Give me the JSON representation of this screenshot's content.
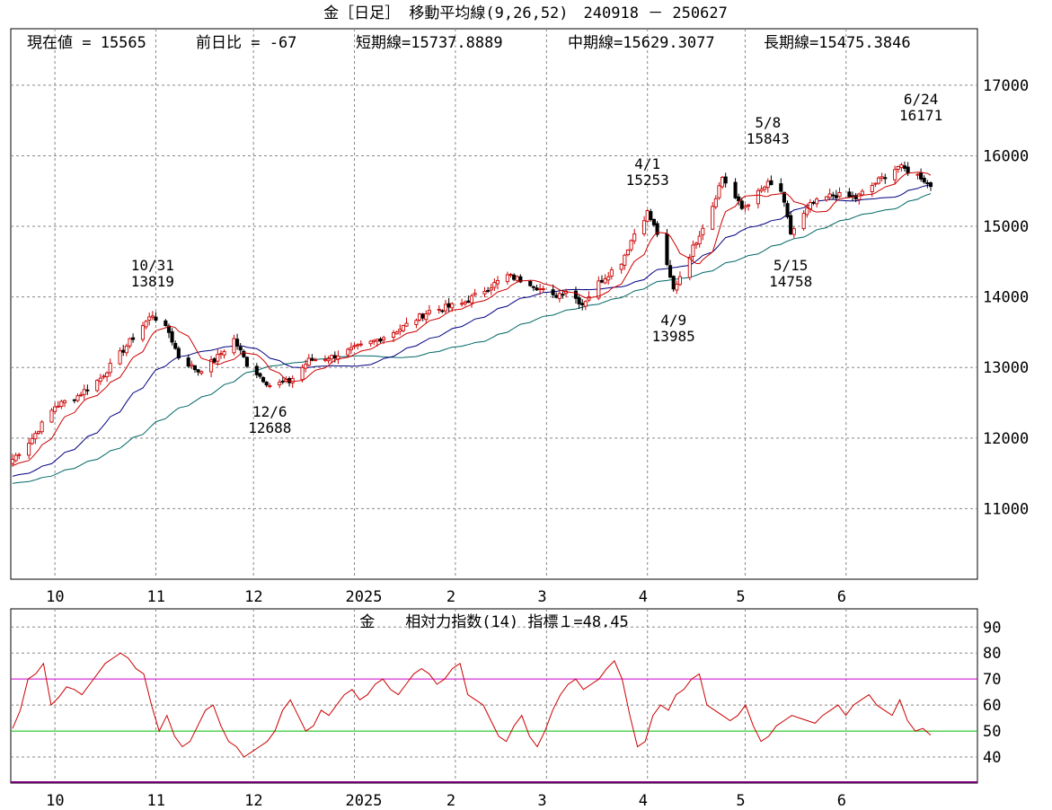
{
  "title": "金［日足］ 移動平均線(9,26,52)　240918 － 250627",
  "info": {
    "current": "現在値 = 15565",
    "change": "前日比 = -67",
    "short": "短期線=15737.8889",
    "mid": "中期線=15629.3077",
    "long": "長期線=15475.3846"
  },
  "rsi_title": "金　　相対力指数(14) 指標１=48.45",
  "colors": {
    "up_candle": "#cc0000",
    "down_candle": "#000000",
    "short_ma": "#cc0000",
    "mid_ma": "#000080",
    "long_ma": "#006666",
    "rsi_line": "#cc0000",
    "rsi_70_line": "#cc00cc",
    "rsi_50_line": "#00bb00"
  },
  "chart_data": [
    {
      "type": "candlestick",
      "title": "金［日足］ 移動平均線(9,26,52)　240918 － 250627",
      "x_labels": [
        "10",
        "11",
        "12",
        "2025",
        "2",
        "3",
        "4",
        "5",
        "6"
      ],
      "x_label_dates": [
        "2024-10-01",
        "2024-11-01",
        "2024-12-01",
        "2025-01-01",
        "2025-02-01",
        "2025-03-01",
        "2025-04-01",
        "2025-05-01",
        "2025-06-01"
      ],
      "date_range": [
        "2024-09-18",
        "2025-06-27"
      ],
      "y_ticks": [
        11000,
        12000,
        13000,
        14000,
        15000,
        16000,
        17000
      ],
      "ylim": [
        10000,
        17800
      ],
      "grid": true,
      "close_path": [
        [
          "2024-09-18",
          11700
        ],
        [
          "2024-09-24",
          12000
        ],
        [
          "2024-10-01",
          12450
        ],
        [
          "2024-10-08",
          12600
        ],
        [
          "2024-10-15",
          12850
        ],
        [
          "2024-10-22",
          13250
        ],
        [
          "2024-10-28",
          13600
        ],
        [
          "2024-10-31",
          13750
        ],
        [
          "2024-11-05",
          13500
        ],
        [
          "2024-11-08",
          13150
        ],
        [
          "2024-11-14",
          12950
        ],
        [
          "2024-11-19",
          13100
        ],
        [
          "2024-11-25",
          13400
        ],
        [
          "2024-11-29",
          13050
        ],
        [
          "2024-12-06",
          12750
        ],
        [
          "2024-12-12",
          12800
        ],
        [
          "2024-12-18",
          13100
        ],
        [
          "2024-12-25",
          13150
        ],
        [
          "2025-01-06",
          13350
        ],
        [
          "2025-01-15",
          13550
        ],
        [
          "2025-01-24",
          13800
        ],
        [
          "2025-02-03",
          13900
        ],
        [
          "2025-02-10",
          14100
        ],
        [
          "2025-02-17",
          14300
        ],
        [
          "2025-02-24",
          14200
        ],
        [
          "2025-03-03",
          14000
        ],
        [
          "2025-03-07",
          14100
        ],
        [
          "2025-03-12",
          13900
        ],
        [
          "2025-03-17",
          14200
        ],
        [
          "2025-03-24",
          14500
        ],
        [
          "2025-03-28",
          14900
        ],
        [
          "2025-04-01",
          15200
        ],
        [
          "2025-04-04",
          14900
        ],
        [
          "2025-04-09",
          14100
        ],
        [
          "2025-04-14",
          14600
        ],
        [
          "2025-04-21",
          15300
        ],
        [
          "2025-04-24",
          15700
        ],
        [
          "2025-04-30",
          15250
        ],
        [
          "2025-05-08",
          15600
        ],
        [
          "2025-05-12",
          15500
        ],
        [
          "2025-05-15",
          14900
        ],
        [
          "2025-05-21",
          15300
        ],
        [
          "2025-05-28",
          15450
        ],
        [
          "2025-06-04",
          15400
        ],
        [
          "2025-06-11",
          15650
        ],
        [
          "2025-06-17",
          15850
        ],
        [
          "2025-06-24",
          15700
        ],
        [
          "2025-06-27",
          15565
        ]
      ],
      "annotations": [
        {
          "date": "2024-10-31",
          "label": "10/31",
          "value": "13819",
          "position": "above"
        },
        {
          "date": "2024-12-06",
          "label": "12/6",
          "value": "12688",
          "position": "below"
        },
        {
          "date": "2025-04-01",
          "label": "4/1",
          "value": "15253",
          "position": "above"
        },
        {
          "date": "2025-04-09",
          "label": "4/9",
          "value": "13985",
          "position": "below"
        },
        {
          "date": "2025-05-08",
          "label": "5/8",
          "value": "15843",
          "position": "above"
        },
        {
          "date": "2025-05-15",
          "label": "5/15",
          "value": "14758",
          "position": "below"
        },
        {
          "date": "2025-06-24",
          "label": "6/24",
          "value": "16171",
          "position": "above"
        }
      ],
      "moving_averages": [
        {
          "period": 9,
          "last": 15737.8889
        },
        {
          "period": 26,
          "last": 15629.3077
        },
        {
          "period": 52,
          "last": 15475.3846
        }
      ]
    },
    {
      "type": "line",
      "title": "金　　相対力指数(14) 指標１=48.45",
      "x_labels": [
        "10",
        "11",
        "12",
        "2025",
        "2",
        "3",
        "4",
        "5",
        "6"
      ],
      "y_ticks": [
        40,
        50,
        60,
        70,
        80,
        90
      ],
      "ylim": [
        30,
        97
      ],
      "reference_lines": [
        70,
        50
      ],
      "grid": true,
      "series": [
        {
          "values": [
            51,
            58,
            70,
            72,
            76,
            60,
            63,
            67,
            66,
            64,
            68,
            72,
            76,
            78,
            80,
            78,
            74,
            72,
            60,
            50,
            56,
            48,
            44,
            46,
            52,
            58,
            60,
            52,
            46,
            44,
            40,
            42,
            44,
            46,
            50,
            58,
            62,
            56,
            50,
            52,
            58,
            56,
            60,
            64,
            66,
            62,
            64,
            68,
            70,
            66,
            64,
            68,
            72,
            74,
            72,
            68,
            70,
            74,
            76,
            64,
            62,
            60,
            54,
            48,
            46,
            52,
            56,
            48,
            44,
            50,
            58,
            64,
            68,
            70,
            66,
            68,
            70,
            74,
            77,
            70,
            56,
            44,
            46,
            56,
            60,
            58,
            64,
            66,
            70,
            72,
            60,
            58,
            56,
            54,
            56,
            60,
            52,
            46,
            48,
            52,
            54,
            56,
            55,
            54,
            53,
            56,
            58,
            60,
            56,
            60,
            62,
            64,
            60,
            58,
            56,
            62,
            54,
            50,
            51,
            48.45
          ]
        }
      ]
    }
  ]
}
